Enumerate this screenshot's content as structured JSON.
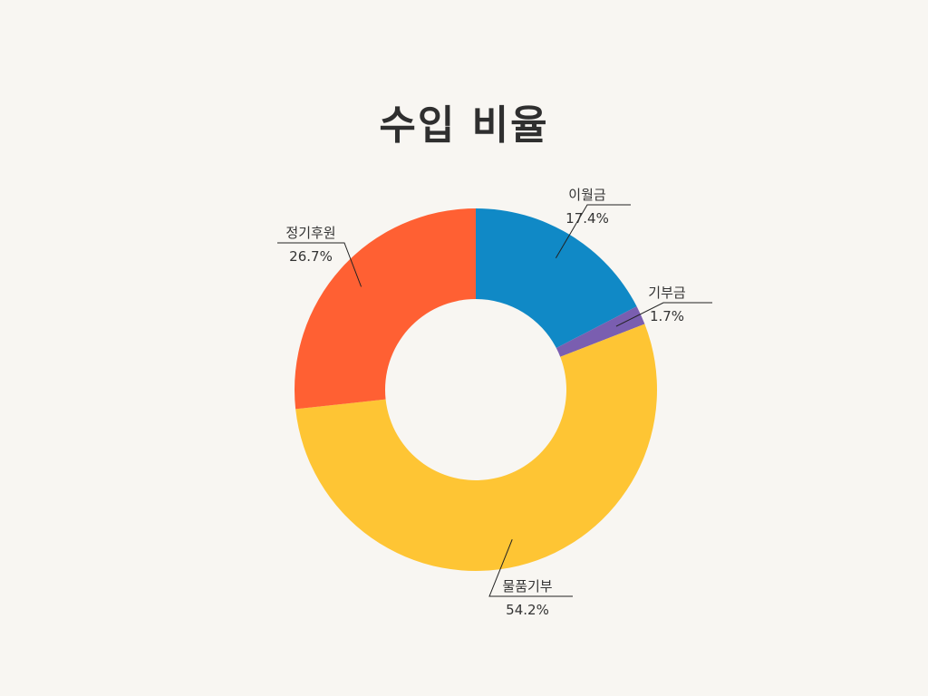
{
  "chart_data": {
    "type": "pie",
    "title": "수입 비율",
    "donut": true,
    "slices": [
      {
        "label": "이월금",
        "value": 17.4,
        "value_label": "17.4%",
        "color": "#1089c6"
      },
      {
        "label": "기부금",
        "value": 1.7,
        "value_label": "1.7%",
        "color": "#7a5eb0"
      },
      {
        "label": "물품기부",
        "value": 54.2,
        "value_label": "54.2%",
        "color": "#fec534"
      },
      {
        "label": "정기후원",
        "value": 26.7,
        "value_label": "26.7%",
        "color": "#ff6033"
      }
    ]
  }
}
